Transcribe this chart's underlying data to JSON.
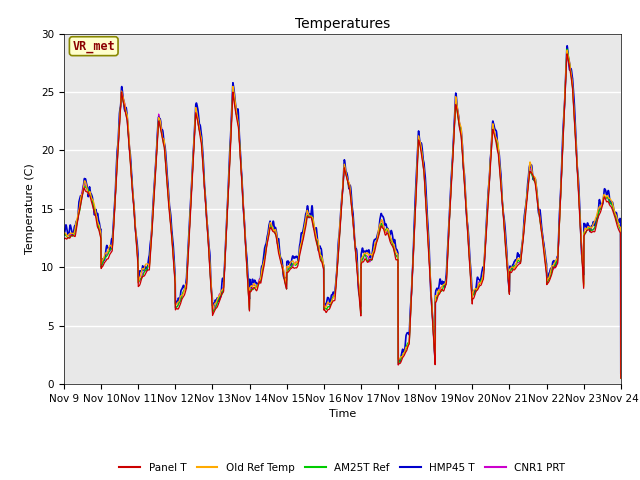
{
  "title": "Temperatures",
  "xlabel": "Time",
  "ylabel": "Temperature (C)",
  "ylim": [
    0,
    30
  ],
  "yticks": [
    0,
    5,
    10,
    15,
    20,
    25,
    30
  ],
  "annotation_text": "VR_met",
  "bg_color": "#e8e8e8",
  "fig_bg": "#ffffff",
  "series_colors": {
    "Panel T": "#cc0000",
    "Old Ref Temp": "#ffaa00",
    "AM25T Ref": "#00cc00",
    "HMP45 T": "#0000cc",
    "CNR1 PRT": "#cc00cc"
  },
  "legend_order": [
    "Panel T",
    "Old Ref Temp",
    "AM25T Ref",
    "HMP45 T",
    "CNR1 PRT"
  ],
  "x_tick_labels": [
    "Nov 9",
    "Nov 10",
    "Nov 11",
    "Nov 12",
    "Nov 13",
    "Nov 14",
    "Nov 15",
    "Nov 16",
    "Nov 17",
    "Nov 18",
    "Nov 19",
    "Nov 20",
    "Nov 21",
    "Nov 22",
    "Nov 23",
    "Nov 24"
  ],
  "n_days": 15,
  "points_per_day": 144
}
